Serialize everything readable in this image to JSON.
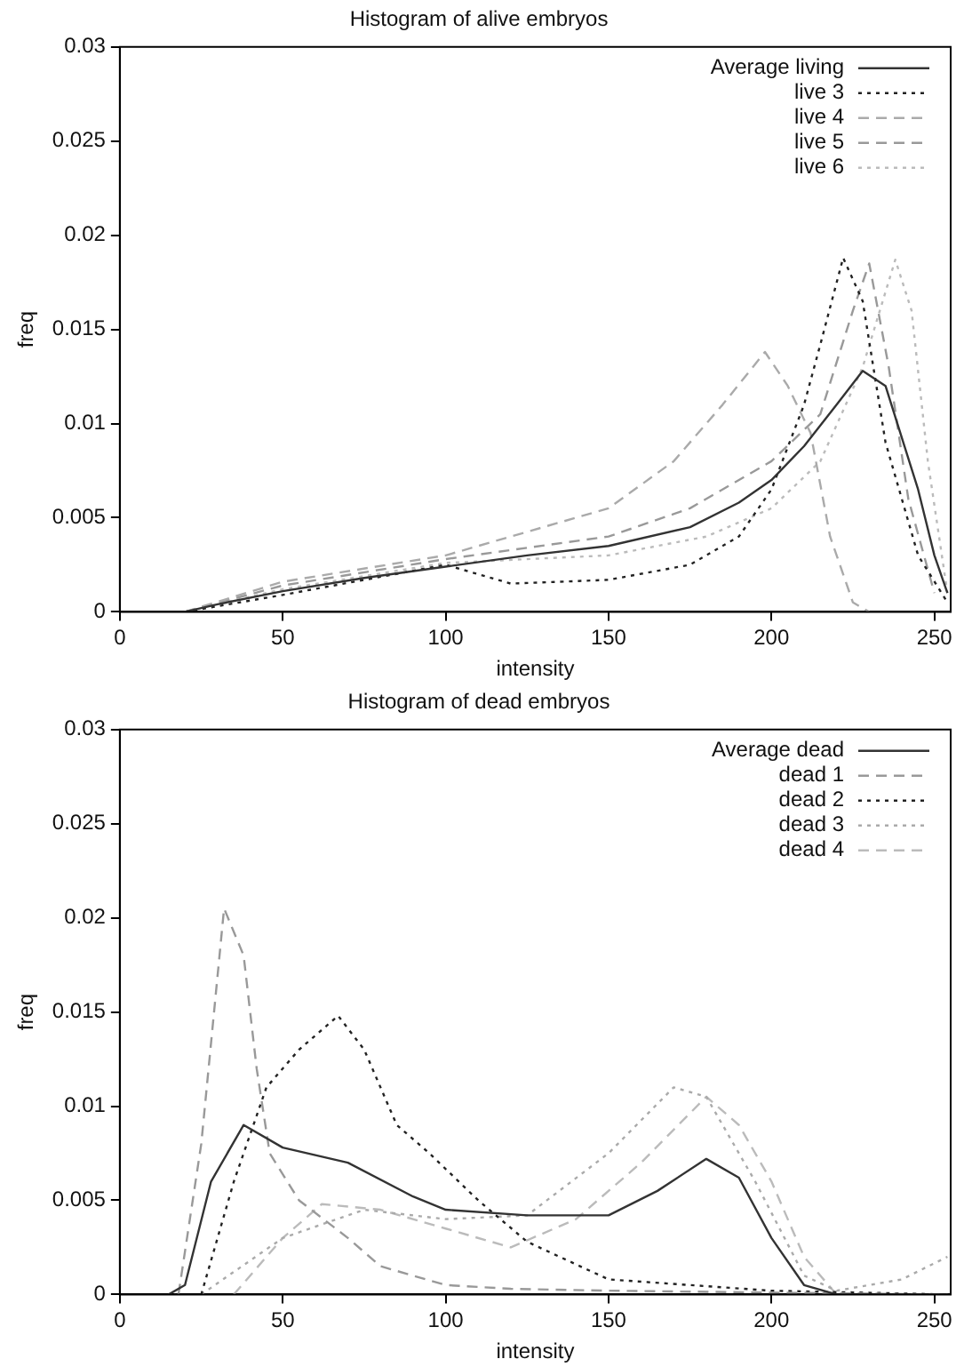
{
  "chart_data": [
    {
      "type": "line",
      "title": "Histogram of alive embryos",
      "xlabel": "intensity",
      "ylabel": "freq",
      "xlim": [
        0,
        255
      ],
      "xticks": [
        0,
        50,
        100,
        150,
        200,
        250
      ],
      "ylim": [
        0,
        0.03
      ],
      "yticks": [
        0,
        0.005,
        0.01,
        0.015,
        0.02,
        0.025,
        0.03
      ],
      "grid": false,
      "legend": "top right",
      "marker": "none",
      "series": [
        {
          "name": "Average living",
          "color": "#333333",
          "line_style": "solid",
          "x": [
            20,
            30,
            50,
            75,
            100,
            125,
            150,
            175,
            190,
            200,
            210,
            220,
            228,
            235,
            245,
            250,
            254
          ],
          "values": [
            0,
            0.0004,
            0.0011,
            0.0018,
            0.0024,
            0.003,
            0.0035,
            0.0045,
            0.0058,
            0.007,
            0.0088,
            0.011,
            0.0128,
            0.012,
            0.0065,
            0.003,
            0.001
          ]
        },
        {
          "name": "live 3",
          "color": "#222222",
          "line_style": "dotted",
          "x": [
            20,
            50,
            100,
            120,
            150,
            175,
            190,
            200,
            210,
            215,
            222,
            228,
            235,
            245,
            254
          ],
          "values": [
            0,
            0.0009,
            0.0025,
            0.0015,
            0.0017,
            0.0025,
            0.004,
            0.0065,
            0.011,
            0.0142,
            0.0188,
            0.0165,
            0.009,
            0.003,
            0.0005
          ]
        },
        {
          "name": "live 4",
          "color": "#aaaaaa",
          "line_style": "dashed",
          "x": [
            20,
            50,
            100,
            150,
            170,
            185,
            198,
            205,
            212,
            218,
            225,
            230
          ],
          "values": [
            0,
            0.0016,
            0.003,
            0.0055,
            0.008,
            0.011,
            0.0138,
            0.012,
            0.0095,
            0.004,
            0.0005,
            0
          ]
        },
        {
          "name": "live 5",
          "color": "#999999",
          "line_style": "dashed",
          "x": [
            20,
            50,
            100,
            150,
            175,
            200,
            215,
            225,
            230,
            236,
            242,
            250
          ],
          "values": [
            0,
            0.0014,
            0.0028,
            0.004,
            0.0055,
            0.008,
            0.0105,
            0.016,
            0.0185,
            0.013,
            0.006,
            0.001
          ]
        },
        {
          "name": "live 6",
          "color": "#bbbbbb",
          "line_style": "dotted",
          "x": [
            20,
            50,
            100,
            150,
            180,
            200,
            215,
            228,
            238,
            243,
            248,
            254
          ],
          "values": [
            0,
            0.0012,
            0.0026,
            0.003,
            0.004,
            0.0055,
            0.008,
            0.013,
            0.0187,
            0.016,
            0.008,
            0.001
          ]
        }
      ]
    },
    {
      "type": "line",
      "title": "Histogram of dead embryos",
      "xlabel": "intensity",
      "ylabel": "freq",
      "xlim": [
        0,
        255
      ],
      "xticks": [
        0,
        50,
        100,
        150,
        200,
        250
      ],
      "ylim": [
        0,
        0.03
      ],
      "yticks": [
        0,
        0.005,
        0.01,
        0.015,
        0.02,
        0.025,
        0.03
      ],
      "grid": false,
      "legend": "top right",
      "marker": "none",
      "series": [
        {
          "name": "Average dead",
          "color": "#333333",
          "line_style": "solid",
          "x": [
            15,
            20,
            28,
            38,
            50,
            70,
            90,
            100,
            125,
            150,
            165,
            180,
            190,
            200,
            210,
            220,
            254
          ],
          "values": [
            0,
            0.0005,
            0.006,
            0.009,
            0.0078,
            0.007,
            0.0052,
            0.0045,
            0.0042,
            0.0042,
            0.0055,
            0.0072,
            0.0062,
            0.003,
            0.0005,
            0,
            0
          ]
        },
        {
          "name": "dead 1",
          "color": "#999999",
          "line_style": "dashed",
          "x": [
            18,
            25,
            32,
            38,
            42,
            46,
            55,
            70,
            80,
            100,
            120,
            150,
            200,
            254
          ],
          "values": [
            0,
            0.008,
            0.0205,
            0.018,
            0.012,
            0.0075,
            0.005,
            0.003,
            0.0015,
            0.0005,
            0.0003,
            0.0002,
            0.0001,
            0
          ]
        },
        {
          "name": "dead 2",
          "color": "#222222",
          "line_style": "dotted",
          "x": [
            25,
            35,
            45,
            55,
            67,
            75,
            85,
            95,
            110,
            125,
            135,
            150,
            200,
            254
          ],
          "values": [
            0,
            0.006,
            0.011,
            0.013,
            0.0148,
            0.013,
            0.009,
            0.0075,
            0.005,
            0.0028,
            0.002,
            0.0008,
            0.0002,
            0
          ]
        },
        {
          "name": "dead 3",
          "color": "#aaaaaa",
          "line_style": "dotted",
          "x": [
            25,
            50,
            75,
            100,
            125,
            150,
            170,
            180,
            195,
            210,
            220,
            240,
            254
          ],
          "values": [
            0,
            0.003,
            0.0045,
            0.004,
            0.0042,
            0.0075,
            0.011,
            0.0105,
            0.006,
            0.001,
            0.0002,
            0.0008,
            0.002
          ]
        },
        {
          "name": "dead 4",
          "color": "#bbbbbb",
          "line_style": "dashed",
          "x": [
            35,
            50,
            62,
            80,
            100,
            120,
            140,
            160,
            180,
            190,
            200,
            210,
            220,
            254
          ],
          "values": [
            0,
            0.003,
            0.0048,
            0.0045,
            0.0035,
            0.0025,
            0.004,
            0.007,
            0.0105,
            0.009,
            0.006,
            0.002,
            0,
            0
          ]
        }
      ]
    }
  ]
}
